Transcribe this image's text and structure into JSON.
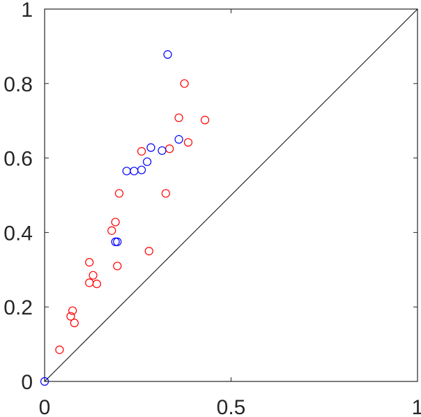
{
  "chart_data": {
    "type": "scatter",
    "title": "",
    "xlabel": "",
    "ylabel": "",
    "xlim": [
      0,
      1
    ],
    "ylim": [
      0,
      1
    ],
    "x_ticks": [
      {
        "value": 0,
        "label": "0"
      },
      {
        "value": 0.5,
        "label": "0.5"
      },
      {
        "value": 1,
        "label": "1"
      }
    ],
    "y_ticks": [
      {
        "value": 0,
        "label": "0"
      },
      {
        "value": 0.2,
        "label": "0.2"
      },
      {
        "value": 0.4,
        "label": "0.4"
      },
      {
        "value": 0.6,
        "label": "0.6"
      },
      {
        "value": 0.8,
        "label": "0.8"
      },
      {
        "value": 1,
        "label": "1"
      }
    ],
    "grid": false,
    "reference_line": {
      "from": [
        0,
        0
      ],
      "to": [
        1,
        1
      ],
      "color": "#000000"
    },
    "series": [
      {
        "color": "#ff0000",
        "marker": "open-circle",
        "points": [
          [
            0.04,
            0.085
          ],
          [
            0.07,
            0.175
          ],
          [
            0.075,
            0.19
          ],
          [
            0.08,
            0.157
          ],
          [
            0.12,
            0.32
          ],
          [
            0.12,
            0.265
          ],
          [
            0.13,
            0.285
          ],
          [
            0.14,
            0.262
          ],
          [
            0.18,
            0.405
          ],
          [
            0.19,
            0.428
          ],
          [
            0.195,
            0.31
          ],
          [
            0.2,
            0.505
          ],
          [
            0.26,
            0.618
          ],
          [
            0.28,
            0.35
          ],
          [
            0.325,
            0.505
          ],
          [
            0.335,
            0.625
          ],
          [
            0.36,
            0.708
          ],
          [
            0.375,
            0.8
          ],
          [
            0.385,
            0.642
          ],
          [
            0.43,
            0.702
          ]
        ]
      },
      {
        "color": "#0000ff",
        "marker": "open-circle",
        "points": [
          [
            0.0,
            0.0
          ],
          [
            0.19,
            0.375
          ],
          [
            0.195,
            0.375
          ],
          [
            0.22,
            0.565
          ],
          [
            0.24,
            0.565
          ],
          [
            0.26,
            0.568
          ],
          [
            0.275,
            0.59
          ],
          [
            0.285,
            0.628
          ],
          [
            0.315,
            0.62
          ],
          [
            0.33,
            0.878
          ],
          [
            0.36,
            0.65
          ]
        ]
      }
    ]
  }
}
